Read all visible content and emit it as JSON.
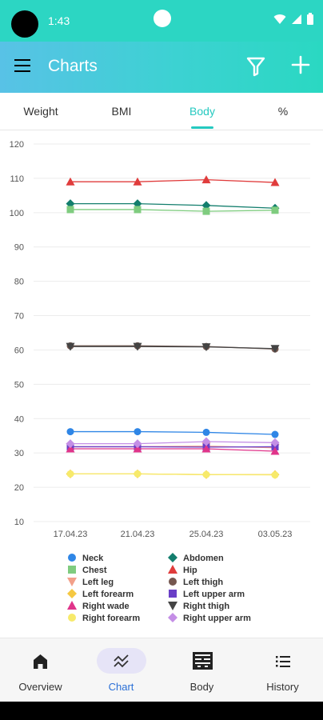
{
  "status": {
    "time": "1:43"
  },
  "appbar": {
    "title": "Charts",
    "menu_icon": "hamburger-icon",
    "filter_icon": "filter-icon",
    "add_icon": "plus-icon"
  },
  "tabs": [
    {
      "label": "Weight"
    },
    {
      "label": "BMI"
    },
    {
      "label": "Body",
      "active": true
    },
    {
      "label": "%"
    }
  ],
  "chart_data": {
    "type": "line",
    "x": [
      "17.04.23",
      "21.04.23",
      "25.04.23",
      "03.05.23"
    ],
    "ylim": [
      10,
      120
    ],
    "yticks": [
      10,
      20,
      30,
      40,
      50,
      60,
      70,
      80,
      90,
      100,
      110,
      120
    ],
    "grid": true,
    "legend_position": "bottom",
    "series": [
      {
        "name": "Neck",
        "color": "#2f86e6",
        "marker": "circle",
        "values": [
          36.2,
          36.2,
          36.0,
          35.4
        ]
      },
      {
        "name": "Abdomen",
        "color": "#137e6d",
        "marker": "diamond",
        "values": [
          102.6,
          102.6,
          102.1,
          101.3
        ]
      },
      {
        "name": "Chest",
        "color": "#7fcc7f",
        "marker": "square",
        "values": [
          100.9,
          100.9,
          100.4,
          100.7
        ]
      },
      {
        "name": "Hip",
        "color": "#e03c3c",
        "marker": "triangle-up",
        "values": [
          109.0,
          109.0,
          109.6,
          108.8
        ]
      },
      {
        "name": "Left leg",
        "color": "#f2a08a",
        "marker": "triangle-down",
        "values": [
          31.8,
          31.8,
          32.0,
          31.5
        ]
      },
      {
        "name": "Left thigh",
        "color": "#75574f",
        "marker": "circle",
        "values": [
          61.2,
          61.2,
          61.0,
          60.3
        ]
      },
      {
        "name": "Left forearm",
        "color": "#f5c842",
        "marker": "diamond",
        "values": [
          23.9,
          23.9,
          23.7,
          23.7
        ]
      },
      {
        "name": "Left upper arm",
        "color": "#6a3fc7",
        "marker": "square",
        "values": [
          31.8,
          31.8,
          31.7,
          31.8
        ]
      },
      {
        "name": "Right wade",
        "color": "#e0348a",
        "marker": "triangle-up",
        "values": [
          31.2,
          31.2,
          31.2,
          30.5
        ]
      },
      {
        "name": "Right thigh",
        "color": "#444444",
        "marker": "triangle-down",
        "values": [
          61.0,
          61.0,
          60.9,
          60.4
        ]
      },
      {
        "name": "Right forearm",
        "color": "#f7ea6b",
        "marker": "circle",
        "values": [
          23.9,
          23.9,
          23.7,
          23.6
        ]
      },
      {
        "name": "Right upper arm",
        "color": "#c48ee6",
        "marker": "diamond",
        "values": [
          32.7,
          32.7,
          33.3,
          33.0
        ]
      }
    ]
  },
  "bottom_nav": [
    {
      "label": "Overview",
      "icon": "home-icon"
    },
    {
      "label": "Chart",
      "icon": "chart-line-icon",
      "active": true
    },
    {
      "label": "Body",
      "icon": "body-scan-icon"
    },
    {
      "label": "History",
      "icon": "list-icon"
    }
  ]
}
